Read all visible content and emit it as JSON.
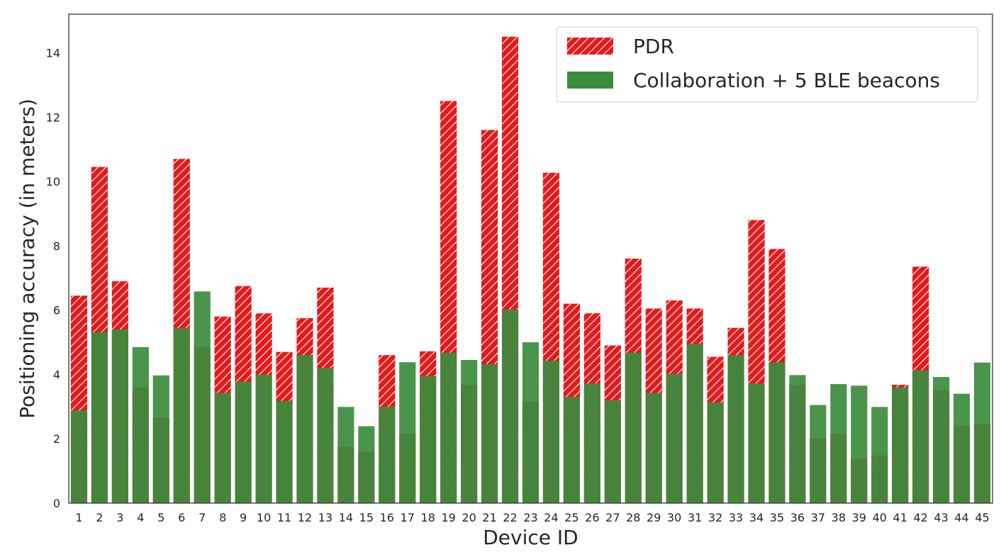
{
  "colors": {
    "pdr_fill": "#e31a1c",
    "pdr_hatch": "#ffffff",
    "collab_fill": "#3d8c3d",
    "collab_hatch": "#2a6a2a",
    "axis": "#262626",
    "background": "#ffffff"
  },
  "chart_data": {
    "type": "bar",
    "xlabel": "Device ID",
    "ylabel": "Positioning accuracy (in meters)",
    "ylim": [
      0,
      15.2
    ],
    "yticks": [
      0,
      2,
      4,
      6,
      8,
      10,
      12,
      14
    ],
    "grid": false,
    "legend_position": "top-right",
    "categories": [
      "1",
      "2",
      "3",
      "4",
      "5",
      "6",
      "7",
      "8",
      "9",
      "10",
      "11",
      "12",
      "13",
      "14",
      "15",
      "16",
      "17",
      "18",
      "19",
      "20",
      "21",
      "22",
      "23",
      "24",
      "25",
      "26",
      "27",
      "28",
      "29",
      "30",
      "31",
      "32",
      "33",
      "34",
      "35",
      "36",
      "37",
      "38",
      "39",
      "40",
      "41",
      "42",
      "43",
      "44",
      "45"
    ],
    "series": [
      {
        "name": "PDR",
        "color": "#e31a1c",
        "hatch": "diagonal",
        "values": [
          6.45,
          10.45,
          6.9,
          3.6,
          2.65,
          10.7,
          4.85,
          5.8,
          6.75,
          5.9,
          4.7,
          5.75,
          6.7,
          1.75,
          1.6,
          4.6,
          2.15,
          4.72,
          12.5,
          3.68,
          11.6,
          14.5,
          3.15,
          10.27,
          6.2,
          5.9,
          4.9,
          7.6,
          6.05,
          6.3,
          6.05,
          4.55,
          5.45,
          8.8,
          7.9,
          3.68,
          2.02,
          2.15,
          1.37,
          1.48,
          3.68,
          7.35,
          3.5,
          2.4,
          2.45
        ]
      },
      {
        "name": "Collaboration + 5 BLE beacons",
        "color": "#3d8c3d",
        "hatch": "none",
        "values": [
          2.88,
          5.32,
          5.4,
          4.85,
          3.97,
          5.45,
          6.58,
          3.43,
          3.78,
          3.99,
          3.18,
          4.6,
          4.2,
          2.99,
          2.39,
          3.0,
          4.38,
          3.95,
          4.68,
          4.45,
          4.32,
          6.02,
          5.0,
          4.43,
          3.3,
          3.72,
          3.2,
          4.68,
          3.43,
          4.02,
          4.95,
          3.13,
          4.6,
          3.72,
          4.38,
          3.98,
          3.05,
          3.7,
          3.65,
          2.99,
          3.6,
          4.13,
          3.92,
          3.4,
          4.37
        ]
      }
    ]
  }
}
